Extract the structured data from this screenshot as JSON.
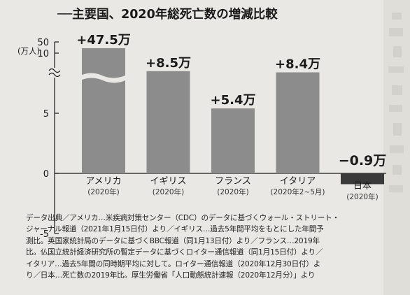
{
  "chart_data": {
    "type": "bar",
    "title": "──主要国、2020年総死亡数の増減比較",
    "unit_label": "(万人)",
    "y_ticks": [
      "50",
      "10",
      "5",
      "0",
      "-5"
    ],
    "ylim": [
      -5,
      50
    ],
    "axis_break": true,
    "categories": [
      "アメリカ",
      "イギリス",
      "フランス",
      "イタリア",
      "日本"
    ],
    "category_sublabels": [
      "(2020年)",
      "(2020年)",
      "(2020年)",
      "(2020年2~5月)",
      "(2020年)"
    ],
    "values": [
      47.5,
      8.5,
      5.4,
      8.4,
      -0.9
    ],
    "value_labels": [
      "+47.5万",
      "+8.5万",
      "+5.4万",
      "+8.4万",
      "−0.9万"
    ],
    "colors": {
      "bar": "#8c8c8c",
      "negative_bar": "#3a3a3a",
      "background": "#e9e8e4"
    },
    "grid": false,
    "legend": "none"
  },
  "notes": [
    "データ出典／アメリカ…米疾病対策センター（CDC）のデータに基づくウォール・ストリート・",
    "ジャーナル報道（2021年1月15日付）より／イギリス…過去5年間平均をもとにした年間予",
    "測比。英国家統計局のデータに基づくBBC報道（同1月13日付）より／フランス…2019年",
    "比。仏国立統計経済研究所の暫定データに基づくロイター通信報道（同1月15日付）より／",
    "イタリア…過去5年間の同時期平均に対して。ロイター通信報道（2020年12月30日付）よ",
    "り／日本…死亡数の2019年比。厚生労働省「人口動態統計速報（2020年12月分）」より"
  ]
}
